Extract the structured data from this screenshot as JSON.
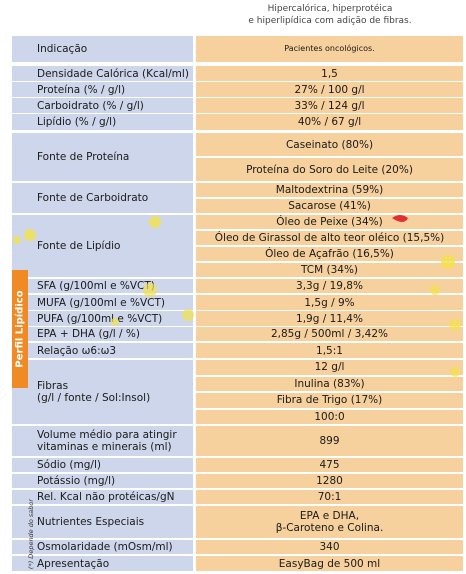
{
  "header": {
    "lines": [
      "Hipercalórica, hiperprotéica",
      "e hiperlipídica com adição de fibras."
    ]
  },
  "side_label": "Perfil Lipídico",
  "footnote": "(*) Depende do sabor",
  "table": {
    "rows": [
      {
        "label": [
          "Indicação"
        ],
        "values": [
          "Pacientes oncológicos."
        ]
      },
      {
        "label": [
          "Densidade Calórica (Kcal/ml)"
        ],
        "values": [
          "1,5"
        ]
      },
      {
        "label": [
          "Proteína (% / g/l)"
        ],
        "values": [
          "27% / 100 g/l"
        ]
      },
      {
        "label": [
          "Carboidrato (% / g/l)"
        ],
        "values": [
          "33% / 124 g/l"
        ]
      },
      {
        "label": [
          "Lipídio (% / g/l)"
        ],
        "values": [
          "40% / 67 g/l"
        ]
      },
      {
        "label": [
          "Fonte de Proteína"
        ],
        "values": [
          "Caseinato (80%)",
          "Proteína do Soro do Leite (20%)"
        ]
      },
      {
        "label": [
          "Fonte de Carboidrato"
        ],
        "values": [
          "Maltodextrina (59%)",
          "Sacarose (41%)"
        ]
      },
      {
        "label": [
          "Fonte de Lipídio"
        ],
        "values": [
          "Óleo de Peixe (34%)",
          "Óleo de Girassol de alto teor oléico (15,5%)",
          "Óleo de Açafrão (16,5%)",
          "TCM (34%)"
        ]
      },
      {
        "label": [
          "SFA (g/100ml e %VCT)"
        ],
        "values": [
          "3,3g / 19,8%"
        ]
      },
      {
        "label": [
          "MUFA (g/100ml e %VCT)"
        ],
        "values": [
          "1,5g / 9%"
        ]
      },
      {
        "label": [
          "PUFA (g/100ml e %VCT)"
        ],
        "values": [
          "1,9g / 11,4%"
        ]
      },
      {
        "label": [
          "EPA + DHA (g/l / %)"
        ],
        "values": [
          "2,85g / 500ml / 3,42%"
        ]
      },
      {
        "label": [
          "Relação ω6:ω3"
        ],
        "values": [
          "1,5:1"
        ]
      },
      {
        "label": [
          "Fibras",
          "(g/l / fonte / Sol:Insol)"
        ],
        "values": [
          "12 g/l",
          "Inulina (83%)",
          "Fibra de Trigo (17%)",
          "100:0"
        ]
      },
      {
        "label": [
          "Volume médio para atingir",
          "vitaminas e minerais (ml)"
        ],
        "values": [
          "899"
        ]
      },
      {
        "label": [
          "Sódio (mg/l)"
        ],
        "values": [
          "475"
        ]
      },
      {
        "label": [
          "Potássio (mg/l)"
        ],
        "values": [
          "1280"
        ]
      },
      {
        "label": [
          "Rel. Kcal não protéicas/gN"
        ],
        "values": [
          "70:1"
        ]
      },
      {
        "label": [
          "Nutrientes Especiais"
        ],
        "values": [
          "EPA e DHA,\nβ-Caroteno e Colina."
        ]
      },
      {
        "label": [
          "Osmolaridade (mOsm/ml)"
        ],
        "values": [
          "340"
        ]
      },
      {
        "label": [
          "Apresentação"
        ],
        "values": [
          "EasyBag de 500 ml"
        ]
      }
    ]
  }
}
